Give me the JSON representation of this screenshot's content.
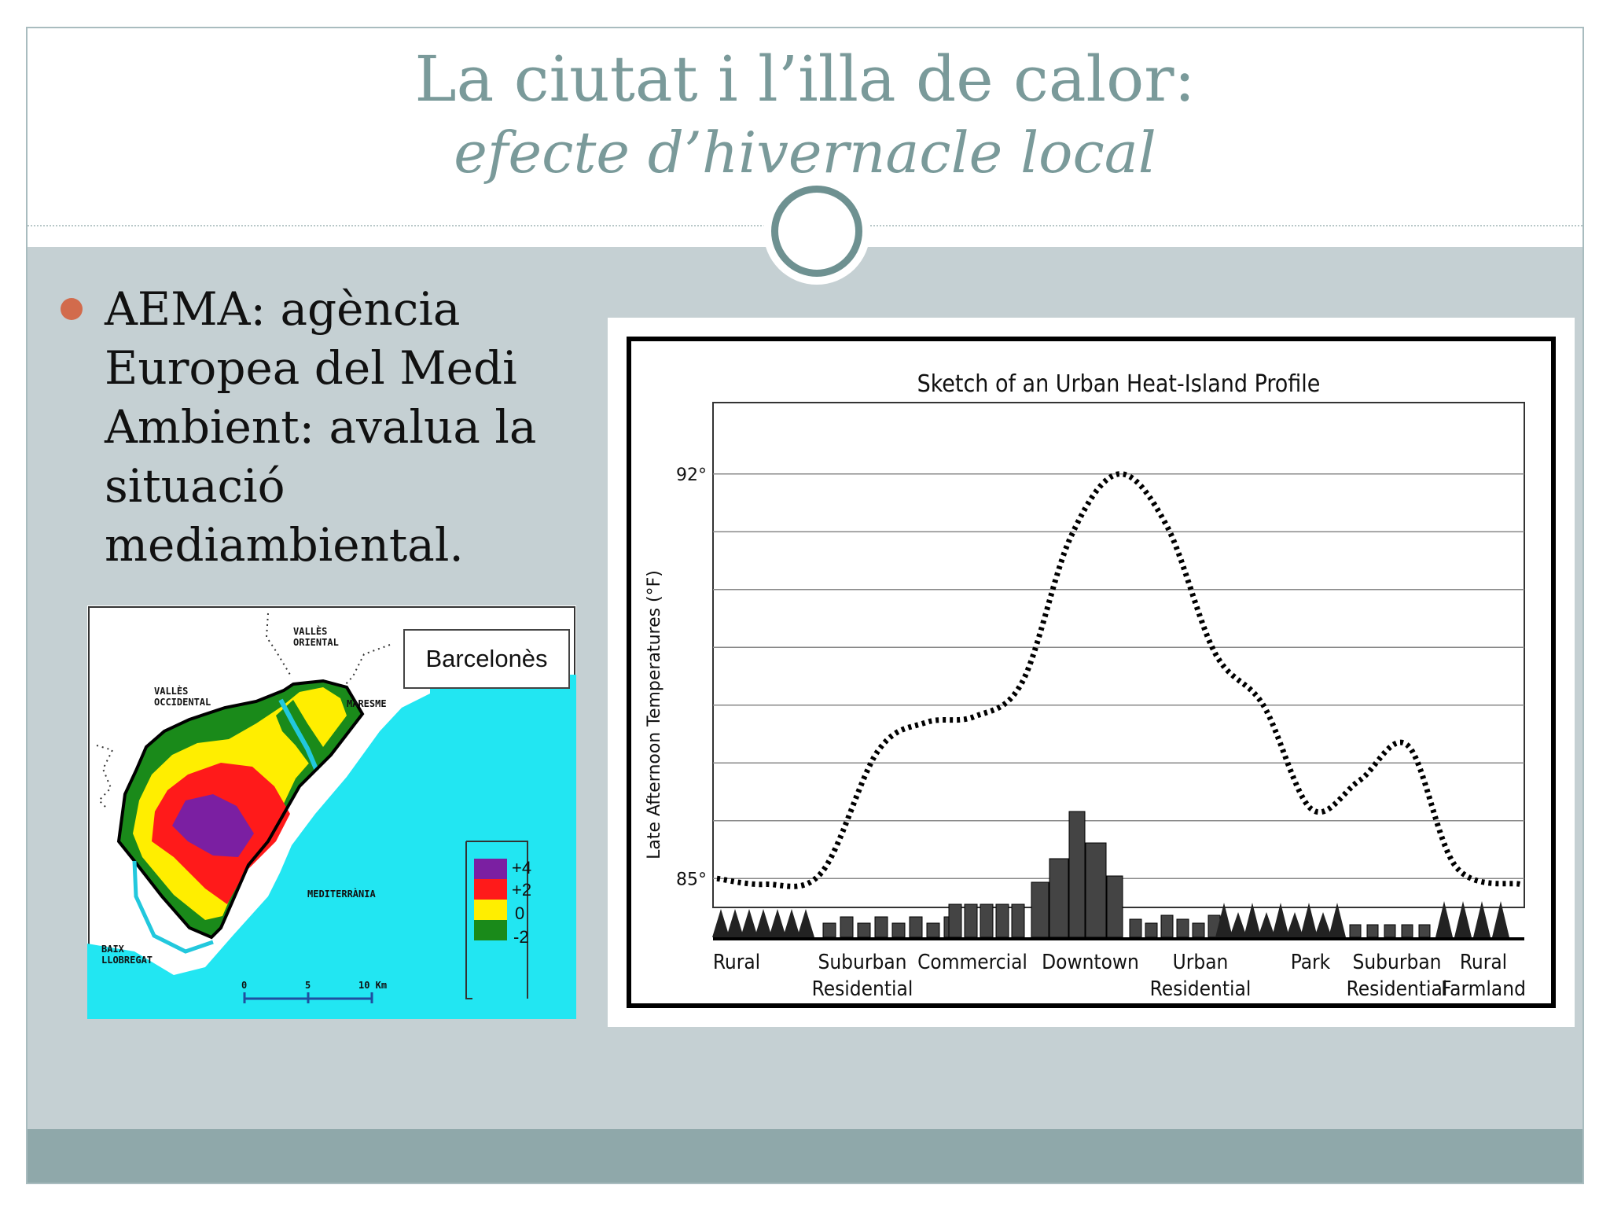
{
  "title": {
    "line1": "La ciutat i l’illa de calor:",
    "line2": "efecte d’hivernacle local"
  },
  "bullet": {
    "text": "AEMA: agència Europea del Medi Ambient: avalua la situació mediambiental."
  },
  "map": {
    "title": "Barcelonès",
    "labels": {
      "valles_oriental": "VALLÈS\nORIENTAL",
      "valles_occidental": "VALLÈS\nOCCIDENTAL",
      "maresme": "MARESME",
      "mediterrania": "MEDITERRÀNIA",
      "baix_llobregat": "BAIX\nLLOBREGAT"
    },
    "scale": [
      "0",
      "5",
      "10 Km"
    ],
    "legend": [
      {
        "label": "+4",
        "color": "#7b1fa2"
      },
      {
        "label": "+2",
        "color": "#ff1a1a"
      },
      {
        "label": "0",
        "color": "#ffee00"
      },
      {
        "label": "-2",
        "color": "#1a8a1a"
      }
    ],
    "colors": {
      "sea": "#22e6f2",
      "coast": "#22c8dd"
    }
  },
  "chart_data": {
    "type": "line",
    "title": "Sketch of an Urban Heat-Island Profile",
    "ylabel": "Late Afternoon Temperatures (°F)",
    "xlabel": "",
    "y_ticks": [
      "92°",
      "85°"
    ],
    "ylim": [
      84.5,
      92.8
    ],
    "categories": [
      "Rural",
      "Suburban Residential",
      "Commercial",
      "Downtown",
      "Urban Residential",
      "Park",
      "Suburban Residential",
      "Rural Farmland"
    ],
    "x": [
      0,
      6,
      13,
      20,
      26,
      32,
      38,
      44,
      50,
      56,
      62,
      68,
      74,
      80,
      86,
      92,
      100
    ],
    "series": [
      {
        "values": [
          85.0,
          84.9,
          85.1,
          87.2,
          87.7,
          87.8,
          88.4,
          90.9,
          92.0,
          91.1,
          88.9,
          88.0,
          86.2,
          86.7,
          87.3,
          85.2,
          84.9
        ]
      }
    ],
    "grid": true,
    "line_style": "dotted"
  }
}
